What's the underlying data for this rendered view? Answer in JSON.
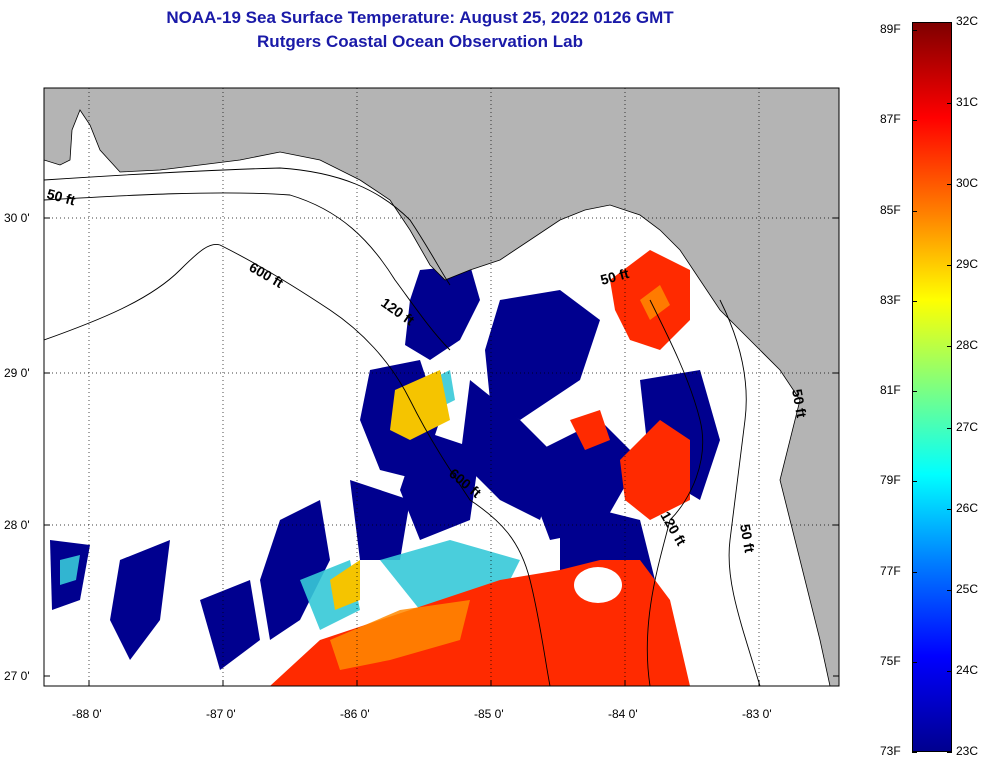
{
  "title": {
    "line1": "NOAA-19 Sea Surface Temperature:  August 25, 2022 0126 GMT",
    "line2": "Rutgers Coastal Ocean Observation Lab"
  },
  "map": {
    "lat_labels": [
      "30 0'",
      "29 0'",
      "28 0'",
      "27 0'"
    ],
    "lon_labels": [
      "-88 0'",
      "-87 0'",
      "-86 0'",
      "-85 0'",
      "-84 0'",
      "-83 0'"
    ],
    "contour_labels": [
      "50 ft",
      "600 ft",
      "120 ft",
      "600 ft",
      "120 ft",
      "50 ft",
      "50 ft",
      "50 ft"
    ],
    "colors": {
      "land": "#b4b4b4",
      "water_nodata": "#ffffff",
      "cold": "#00008f",
      "warm": "#ff2000"
    }
  },
  "colorbar": {
    "fahrenheit": [
      "89F",
      "87F",
      "85F",
      "83F",
      "81F",
      "79F",
      "77F",
      "75F",
      "73F"
    ],
    "celsius": [
      "32C",
      "31C",
      "30C",
      "29C",
      "28C",
      "27C",
      "26C",
      "25C",
      "24C",
      "23C"
    ],
    "range_c": [
      23,
      32
    ],
    "colormap": "jet"
  }
}
